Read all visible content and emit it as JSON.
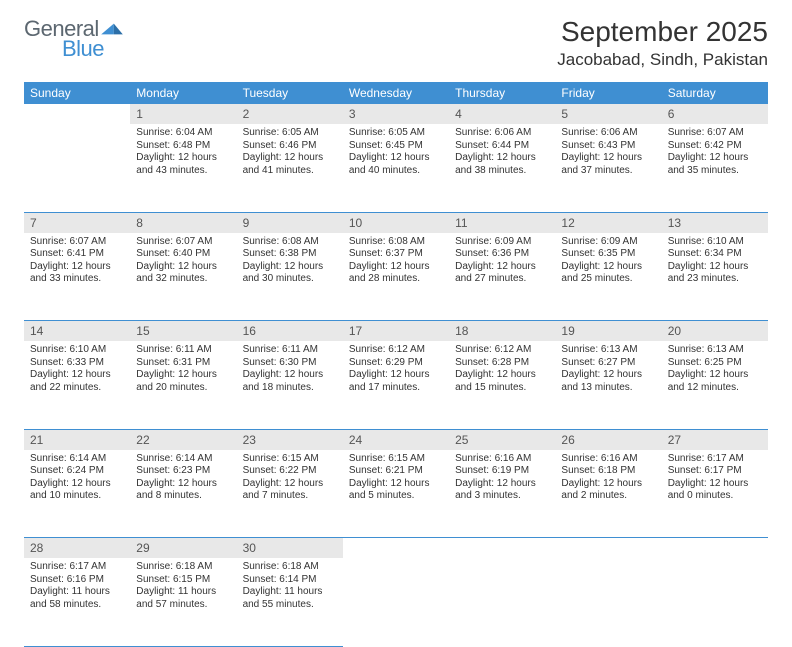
{
  "logo": {
    "word1": "General",
    "word2": "Blue"
  },
  "title": "September 2025",
  "location": "Jacobabad, Sindh, Pakistan",
  "colors": {
    "header_bg": "#3f8fd2",
    "header_text": "#ffffff",
    "daynum_bg": "#e8e8e8",
    "border": "#3f8fd2",
    "text": "#333333",
    "logo_gray": "#5c6770",
    "logo_blue": "#3f8fd2",
    "background": "#ffffff"
  },
  "typography": {
    "title_fontsize": 28,
    "location_fontsize": 17,
    "header_fontsize": 12,
    "daynum_fontsize": 12,
    "cell_fontsize": 10
  },
  "day_names": [
    "Sunday",
    "Monday",
    "Tuesday",
    "Wednesday",
    "Thursday",
    "Friday",
    "Saturday"
  ],
  "weeks": [
    [
      {
        "num": "",
        "sunrise": "",
        "sunset": "",
        "daylight": ""
      },
      {
        "num": "1",
        "sunrise": "Sunrise: 6:04 AM",
        "sunset": "Sunset: 6:48 PM",
        "daylight": "Daylight: 12 hours and 43 minutes."
      },
      {
        "num": "2",
        "sunrise": "Sunrise: 6:05 AM",
        "sunset": "Sunset: 6:46 PM",
        "daylight": "Daylight: 12 hours and 41 minutes."
      },
      {
        "num": "3",
        "sunrise": "Sunrise: 6:05 AM",
        "sunset": "Sunset: 6:45 PM",
        "daylight": "Daylight: 12 hours and 40 minutes."
      },
      {
        "num": "4",
        "sunrise": "Sunrise: 6:06 AM",
        "sunset": "Sunset: 6:44 PM",
        "daylight": "Daylight: 12 hours and 38 minutes."
      },
      {
        "num": "5",
        "sunrise": "Sunrise: 6:06 AM",
        "sunset": "Sunset: 6:43 PM",
        "daylight": "Daylight: 12 hours and 37 minutes."
      },
      {
        "num": "6",
        "sunrise": "Sunrise: 6:07 AM",
        "sunset": "Sunset: 6:42 PM",
        "daylight": "Daylight: 12 hours and 35 minutes."
      }
    ],
    [
      {
        "num": "7",
        "sunrise": "Sunrise: 6:07 AM",
        "sunset": "Sunset: 6:41 PM",
        "daylight": "Daylight: 12 hours and 33 minutes."
      },
      {
        "num": "8",
        "sunrise": "Sunrise: 6:07 AM",
        "sunset": "Sunset: 6:40 PM",
        "daylight": "Daylight: 12 hours and 32 minutes."
      },
      {
        "num": "9",
        "sunrise": "Sunrise: 6:08 AM",
        "sunset": "Sunset: 6:38 PM",
        "daylight": "Daylight: 12 hours and 30 minutes."
      },
      {
        "num": "10",
        "sunrise": "Sunrise: 6:08 AM",
        "sunset": "Sunset: 6:37 PM",
        "daylight": "Daylight: 12 hours and 28 minutes."
      },
      {
        "num": "11",
        "sunrise": "Sunrise: 6:09 AM",
        "sunset": "Sunset: 6:36 PM",
        "daylight": "Daylight: 12 hours and 27 minutes."
      },
      {
        "num": "12",
        "sunrise": "Sunrise: 6:09 AM",
        "sunset": "Sunset: 6:35 PM",
        "daylight": "Daylight: 12 hours and 25 minutes."
      },
      {
        "num": "13",
        "sunrise": "Sunrise: 6:10 AM",
        "sunset": "Sunset: 6:34 PM",
        "daylight": "Daylight: 12 hours and 23 minutes."
      }
    ],
    [
      {
        "num": "14",
        "sunrise": "Sunrise: 6:10 AM",
        "sunset": "Sunset: 6:33 PM",
        "daylight": "Daylight: 12 hours and 22 minutes."
      },
      {
        "num": "15",
        "sunrise": "Sunrise: 6:11 AM",
        "sunset": "Sunset: 6:31 PM",
        "daylight": "Daylight: 12 hours and 20 minutes."
      },
      {
        "num": "16",
        "sunrise": "Sunrise: 6:11 AM",
        "sunset": "Sunset: 6:30 PM",
        "daylight": "Daylight: 12 hours and 18 minutes."
      },
      {
        "num": "17",
        "sunrise": "Sunrise: 6:12 AM",
        "sunset": "Sunset: 6:29 PM",
        "daylight": "Daylight: 12 hours and 17 minutes."
      },
      {
        "num": "18",
        "sunrise": "Sunrise: 6:12 AM",
        "sunset": "Sunset: 6:28 PM",
        "daylight": "Daylight: 12 hours and 15 minutes."
      },
      {
        "num": "19",
        "sunrise": "Sunrise: 6:13 AM",
        "sunset": "Sunset: 6:27 PM",
        "daylight": "Daylight: 12 hours and 13 minutes."
      },
      {
        "num": "20",
        "sunrise": "Sunrise: 6:13 AM",
        "sunset": "Sunset: 6:25 PM",
        "daylight": "Daylight: 12 hours and 12 minutes."
      }
    ],
    [
      {
        "num": "21",
        "sunrise": "Sunrise: 6:14 AM",
        "sunset": "Sunset: 6:24 PM",
        "daylight": "Daylight: 12 hours and 10 minutes."
      },
      {
        "num": "22",
        "sunrise": "Sunrise: 6:14 AM",
        "sunset": "Sunset: 6:23 PM",
        "daylight": "Daylight: 12 hours and 8 minutes."
      },
      {
        "num": "23",
        "sunrise": "Sunrise: 6:15 AM",
        "sunset": "Sunset: 6:22 PM",
        "daylight": "Daylight: 12 hours and 7 minutes."
      },
      {
        "num": "24",
        "sunrise": "Sunrise: 6:15 AM",
        "sunset": "Sunset: 6:21 PM",
        "daylight": "Daylight: 12 hours and 5 minutes."
      },
      {
        "num": "25",
        "sunrise": "Sunrise: 6:16 AM",
        "sunset": "Sunset: 6:19 PM",
        "daylight": "Daylight: 12 hours and 3 minutes."
      },
      {
        "num": "26",
        "sunrise": "Sunrise: 6:16 AM",
        "sunset": "Sunset: 6:18 PM",
        "daylight": "Daylight: 12 hours and 2 minutes."
      },
      {
        "num": "27",
        "sunrise": "Sunrise: 6:17 AM",
        "sunset": "Sunset: 6:17 PM",
        "daylight": "Daylight: 12 hours and 0 minutes."
      }
    ],
    [
      {
        "num": "28",
        "sunrise": "Sunrise: 6:17 AM",
        "sunset": "Sunset: 6:16 PM",
        "daylight": "Daylight: 11 hours and 58 minutes."
      },
      {
        "num": "29",
        "sunrise": "Sunrise: 6:18 AM",
        "sunset": "Sunset: 6:15 PM",
        "daylight": "Daylight: 11 hours and 57 minutes."
      },
      {
        "num": "30",
        "sunrise": "Sunrise: 6:18 AM",
        "sunset": "Sunset: 6:14 PM",
        "daylight": "Daylight: 11 hours and 55 minutes."
      },
      {
        "num": "",
        "sunrise": "",
        "sunset": "",
        "daylight": ""
      },
      {
        "num": "",
        "sunrise": "",
        "sunset": "",
        "daylight": ""
      },
      {
        "num": "",
        "sunrise": "",
        "sunset": "",
        "daylight": ""
      },
      {
        "num": "",
        "sunrise": "",
        "sunset": "",
        "daylight": ""
      }
    ]
  ]
}
